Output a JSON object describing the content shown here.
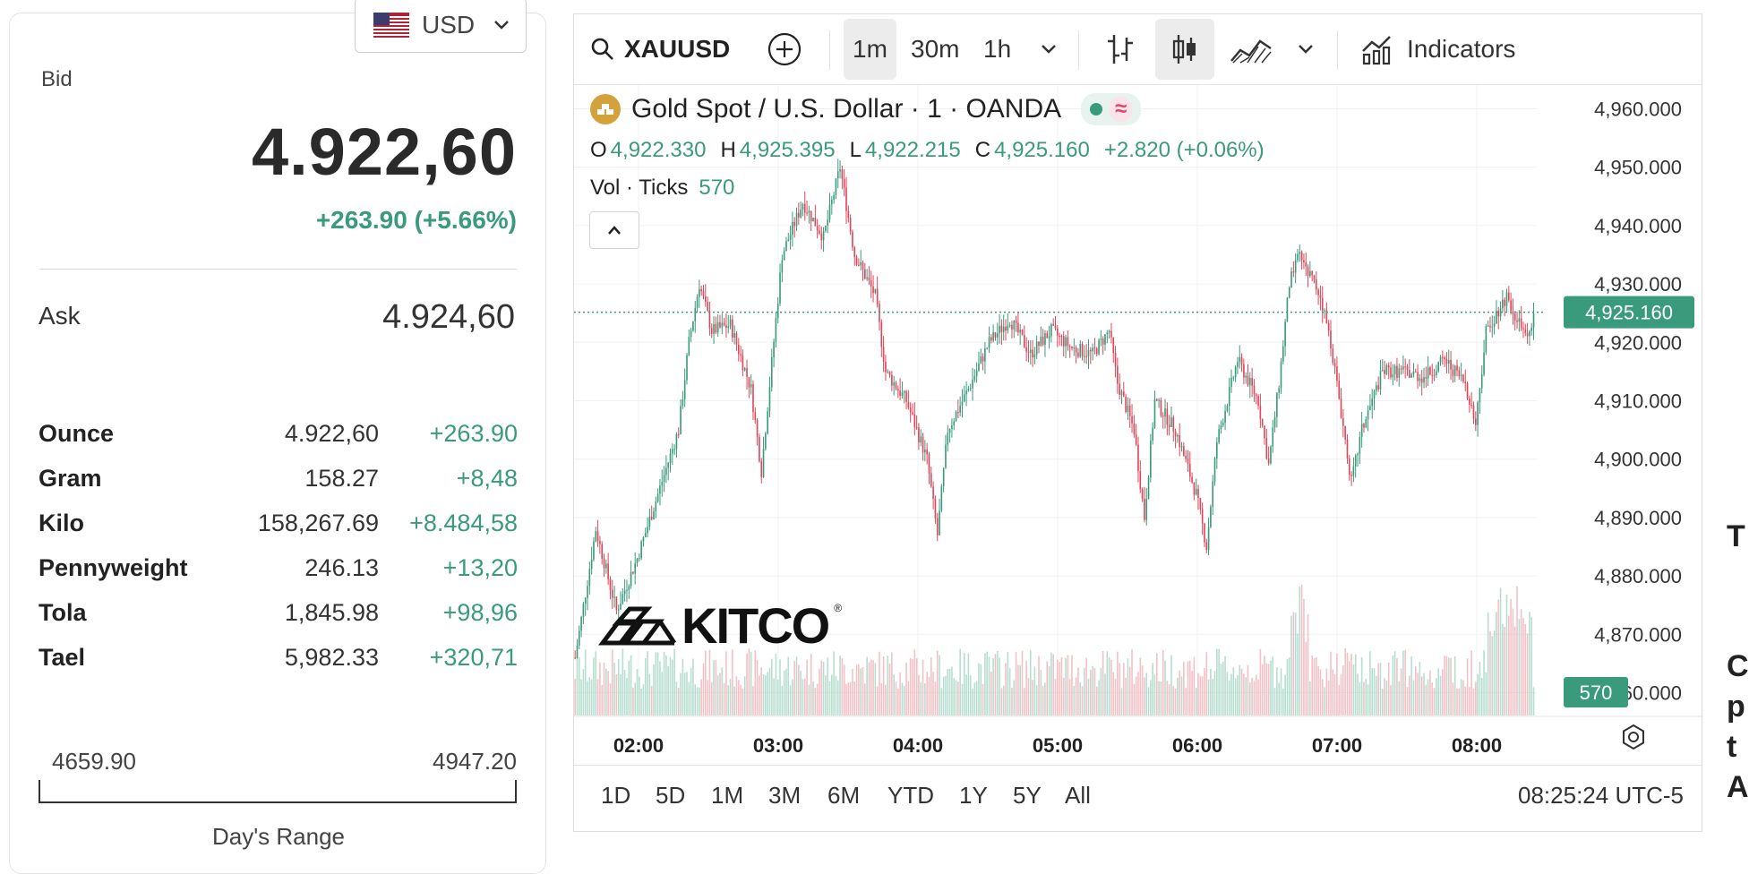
{
  "currency": {
    "label": "USD",
    "icon": "us-flag-icon"
  },
  "quote": {
    "bid_label": "Bid",
    "bid_value": "4.922,60",
    "bid_change": "+263.90 (+5.66%)",
    "ask_label": "Ask",
    "ask_value": "4.924,60"
  },
  "units": [
    {
      "name": "Ounce",
      "price": "4.922,60",
      "change": "+263.90"
    },
    {
      "name": "Gram",
      "price": "158.27",
      "change": "+8,48"
    },
    {
      "name": "Kilo",
      "price": "158,267.69",
      "change": "+8.484,58"
    },
    {
      "name": "Pennyweight",
      "price": "246.13",
      "change": "+13,20"
    },
    {
      "name": "Tola",
      "price": "1,845.98",
      "change": "+98,96"
    },
    {
      "name": "Tael",
      "price": "5,982.33",
      "change": "+320,71"
    }
  ],
  "day_range": {
    "low": "4659.90",
    "high": "4947.20",
    "label": "Day's Range"
  },
  "toolbar": {
    "symbol": "XAUUSD",
    "intervals": [
      "1m",
      "30m",
      "1h"
    ],
    "active_interval": "1m",
    "indicators_label": "Indicators"
  },
  "legend": {
    "title": "Gold Spot / U.S. Dollar · 1 · OANDA",
    "o_label": "O",
    "o_value": "4,922.330",
    "h_label": "H",
    "h_value": "4,925.395",
    "l_label": "L",
    "l_value": "4,922.215",
    "c_label": "C",
    "c_value": "4,925.160",
    "change": "+2.820 (+0.06%)",
    "vol_label": "Vol · Ticks",
    "vol_value": "570",
    "status_symbol": "≈"
  },
  "watermark": {
    "text": "KITCO",
    "reg": "®"
  },
  "colors": {
    "up": "#3a9a7c",
    "down": "#e0465a",
    "price_tag": "#3a9a7c",
    "gold": "#d4a23b"
  },
  "chart_data": {
    "type": "candlestick",
    "title": "Gold Spot / U.S. Dollar · 1 · OANDA",
    "y_ticks": [
      "4,960.000",
      "4,950.000",
      "4,940.000",
      "4,930.000",
      "4,920.000",
      "4,910.000",
      "4,900.000",
      "4,890.000",
      "4,880.000",
      "4,870.000",
      "4,860.000"
    ],
    "ylim": [
      4859,
      4961
    ],
    "x_ticks": [
      "02:00",
      "03:00",
      "04:00",
      "05:00",
      "06:00",
      "07:00",
      "08:00"
    ],
    "last_price": "4,925.160",
    "last_volume": "570",
    "price_path": [
      [
        0,
        4866
      ],
      [
        10,
        4888
      ],
      [
        20,
        4874
      ],
      [
        30,
        4883
      ],
      [
        40,
        4894
      ],
      [
        50,
        4905
      ],
      [
        55,
        4920
      ],
      [
        60,
        4930
      ],
      [
        66,
        4922
      ],
      [
        75,
        4923
      ],
      [
        85,
        4912
      ],
      [
        90,
        4898
      ],
      [
        100,
        4935
      ],
      [
        110,
        4944
      ],
      [
        120,
        4938
      ],
      [
        128,
        4950
      ],
      [
        135,
        4935
      ],
      [
        145,
        4928
      ],
      [
        150,
        4915
      ],
      [
        160,
        4910
      ],
      [
        170,
        4900
      ],
      [
        175,
        4887
      ],
      [
        180,
        4905
      ],
      [
        190,
        4912
      ],
      [
        200,
        4920
      ],
      [
        210,
        4924
      ],
      [
        220,
        4918
      ],
      [
        230,
        4922
      ],
      [
        240,
        4919
      ],
      [
        250,
        4918
      ],
      [
        258,
        4922
      ],
      [
        262,
        4913
      ],
      [
        270,
        4905
      ],
      [
        275,
        4890
      ],
      [
        280,
        4910
      ],
      [
        290,
        4905
      ],
      [
        300,
        4894
      ],
      [
        305,
        4885
      ],
      [
        310,
        4903
      ],
      [
        320,
        4917
      ],
      [
        330,
        4910
      ],
      [
        335,
        4899
      ],
      [
        340,
        4913
      ],
      [
        345,
        4930
      ],
      [
        350,
        4935
      ],
      [
        360,
        4928
      ],
      [
        365,
        4920
      ],
      [
        370,
        4908
      ],
      [
        375,
        4896
      ],
      [
        380,
        4905
      ],
      [
        390,
        4915
      ],
      [
        400,
        4915
      ],
      [
        410,
        4914
      ],
      [
        420,
        4917
      ],
      [
        430,
        4913
      ],
      [
        435,
        4906
      ],
      [
        440,
        4922
      ],
      [
        450,
        4928
      ],
      [
        455,
        4924
      ],
      [
        460,
        4920
      ],
      [
        463,
        4925.16
      ]
    ],
    "volume_profile": "low across session with spikes near 07:00 and 08:00"
  },
  "bottom": {
    "ranges": [
      "1D",
      "5D",
      "1M",
      "3M",
      "6M",
      "YTD",
      "1Y",
      "5Y",
      "All"
    ],
    "clock": "08:25:24 UTC-5"
  },
  "edge": [
    "T",
    "C",
    "p",
    "t",
    "A"
  ]
}
